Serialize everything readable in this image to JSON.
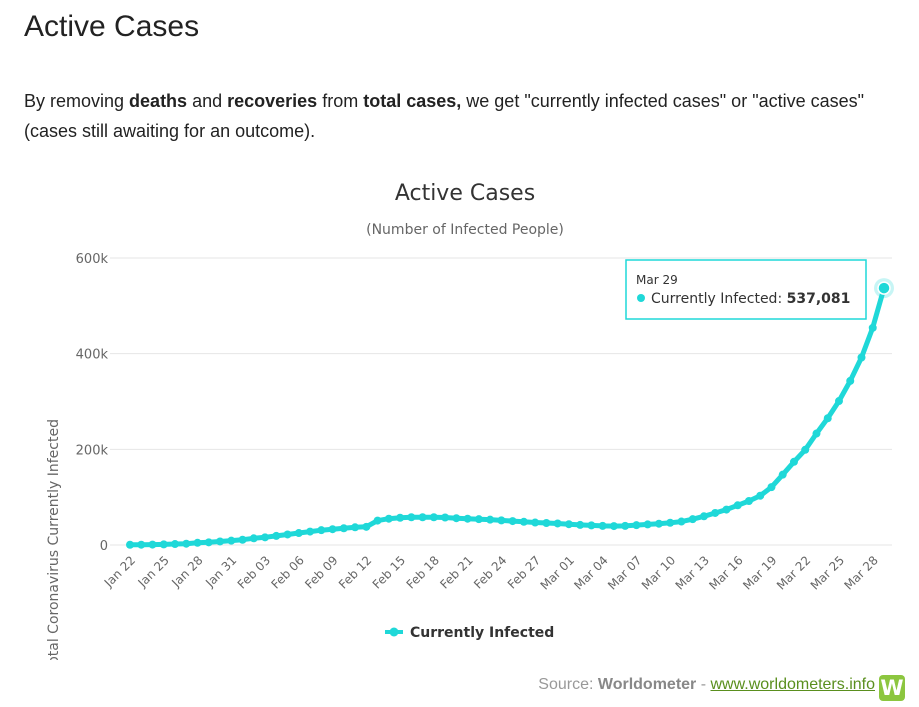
{
  "page": {
    "title": "Active Cases",
    "intro": {
      "p1": "By removing ",
      "b1": "deaths",
      "p2": " and ",
      "b2": "recoveries",
      "p3": " from ",
      "b3": "total cases,",
      "p4": " we get \"currently infected cases\" or \"active cases\" (cases still awaiting for an outcome)."
    }
  },
  "chart_data": {
    "type": "line",
    "title": "Active Cases",
    "subtitle": "(Number of Infected People)",
    "ylabel": "Total Coronavirus Currently Infected",
    "xlabel": "",
    "ylim": [
      0,
      600000
    ],
    "yticks": [
      0,
      200000,
      400000,
      600000
    ],
    "ytick_labels": [
      "0",
      "200k",
      "400k",
      "600k"
    ],
    "grid": "horizontal",
    "legend_position": "bottom-center",
    "x": [
      "Jan 22",
      "Jan 23",
      "Jan 24",
      "Jan 25",
      "Jan 26",
      "Jan 27",
      "Jan 28",
      "Jan 29",
      "Jan 30",
      "Jan 31",
      "Feb 01",
      "Feb 02",
      "Feb 03",
      "Feb 04",
      "Feb 05",
      "Feb 06",
      "Feb 07",
      "Feb 08",
      "Feb 09",
      "Feb 10",
      "Feb 11",
      "Feb 12",
      "Feb 13",
      "Feb 14",
      "Feb 15",
      "Feb 16",
      "Feb 17",
      "Feb 18",
      "Feb 19",
      "Feb 20",
      "Feb 21",
      "Feb 22",
      "Feb 23",
      "Feb 24",
      "Feb 25",
      "Feb 26",
      "Feb 27",
      "Feb 28",
      "Feb 29",
      "Mar 01",
      "Mar 02",
      "Mar 03",
      "Mar 04",
      "Mar 05",
      "Mar 06",
      "Mar 07",
      "Mar 08",
      "Mar 09",
      "Mar 10",
      "Mar 11",
      "Mar 12",
      "Mar 13",
      "Mar 14",
      "Mar 15",
      "Mar 16",
      "Mar 17",
      "Mar 18",
      "Mar 19",
      "Mar 20",
      "Mar 21",
      "Mar 22",
      "Mar 23",
      "Mar 24",
      "Mar 25",
      "Mar 26",
      "Mar 27",
      "Mar 28",
      "Mar 29"
    ],
    "xtick_labels": [
      "Jan 22",
      "Jan 25",
      "Jan 28",
      "Jan 31",
      "Feb 03",
      "Feb 06",
      "Feb 09",
      "Feb 12",
      "Feb 15",
      "Feb 18",
      "Feb 21",
      "Feb 24",
      "Feb 27",
      "Mar 01",
      "Mar 04",
      "Mar 07",
      "Mar 10",
      "Mar 13",
      "Mar 16",
      "Mar 19",
      "Mar 22",
      "Mar 25",
      "Mar 28"
    ],
    "series": [
      {
        "name": "Currently Infected",
        "color": "#1fd8d8",
        "values": [
          510,
          600,
          850,
          1300,
          2000,
          2700,
          4600,
          5600,
          7400,
          9100,
          11000,
          14000,
          16000,
          19000,
          22000,
          25000,
          28000,
          31000,
          33000,
          35000,
          37000,
          38000,
          51000,
          55000,
          57000,
          58000,
          58000,
          58000,
          57500,
          56000,
          55000,
          54000,
          53000,
          51500,
          50000,
          48500,
          47000,
          46000,
          45000,
          43500,
          42000,
          41000,
          40000,
          39500,
          40000,
          41500,
          43000,
          44500,
          46500,
          49000,
          54000,
          60000,
          67000,
          74000,
          83000,
          92000,
          103000,
          121000,
          147000,
          174000,
          199000,
          233000,
          265000,
          301000,
          343000,
          392000,
          454000,
          537081
        ]
      }
    ],
    "tooltip": {
      "date": "Mar 29",
      "label": "Currently Infected: ",
      "value": "537,081"
    }
  },
  "source": {
    "prefix": "Source: ",
    "name": "Worldometer",
    "sep": " - ",
    "link": "www.worldometers.info",
    "logo_letter": "W"
  }
}
